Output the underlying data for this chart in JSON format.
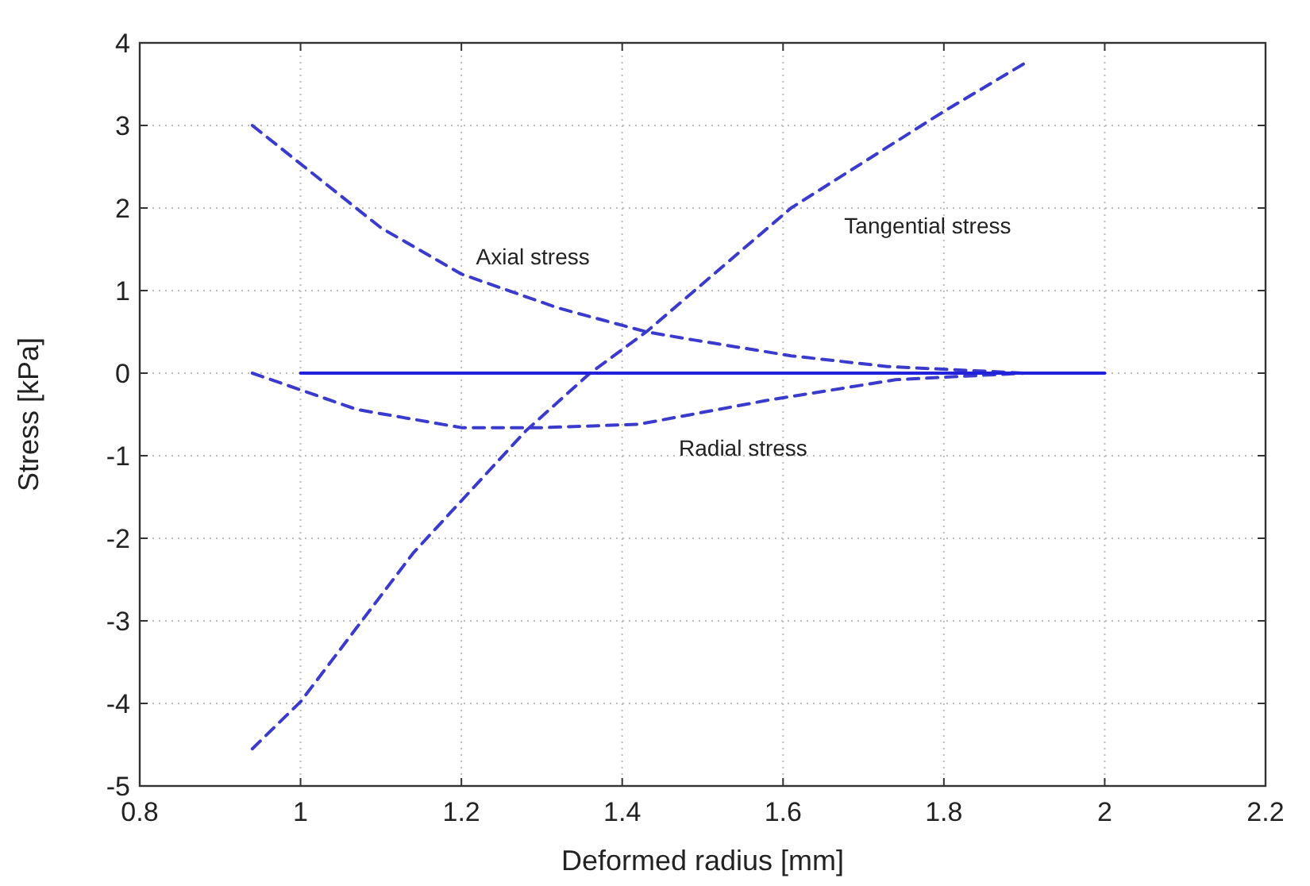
{
  "chart_data": {
    "type": "line",
    "xlabel": "Deformed radius [mm]",
    "ylabel": "Stress [kPa]",
    "xlim": [
      0.8,
      2.2
    ],
    "xticks": [
      0.8,
      1,
      1.2,
      1.4,
      1.6,
      1.8,
      2,
      2.2
    ],
    "ylim": [
      -5,
      4
    ],
    "yticks": [
      -5,
      -4,
      -3,
      -2,
      -1,
      0,
      1,
      2,
      3,
      4
    ],
    "grid": true,
    "marker": "none",
    "series": [
      {
        "name": "Axial stress",
        "color": "#3a3acc",
        "line_style": "dashed",
        "x": [
          0.94,
          1.1,
          1.2,
          1.32,
          1.43,
          1.49,
          1.61,
          1.73,
          1.9
        ],
        "values": [
          3,
          1.76,
          1.2,
          0.79,
          0.5,
          0.4,
          0.21,
          0.08,
          0
        ]
      },
      {
        "name": "Radial stress",
        "color": "#3a3acc",
        "line_style": "dashed",
        "x": [
          0.94,
          1.07,
          1.2,
          1.3,
          1.42,
          1.58,
          1.74,
          1.9
        ],
        "values": [
          0,
          -0.44,
          -0.66,
          -0.66,
          -0.62,
          -0.33,
          -0.08,
          0
        ]
      },
      {
        "name": "Tangential stress",
        "color": "#3a3acc",
        "line_style": "dashed",
        "x": [
          0.94,
          1,
          1.14,
          1.28,
          1.36,
          1.43,
          1.61,
          1.8,
          1.9
        ],
        "values": [
          -4.55,
          -3.98,
          -2.18,
          -0.7,
          0,
          0.5,
          2,
          3.17,
          3.75
        ]
      },
      {
        "color": "#2222dd",
        "line_style": "solid",
        "x": [
          1,
          2
        ],
        "values": [
          0,
          0
        ]
      }
    ]
  }
}
